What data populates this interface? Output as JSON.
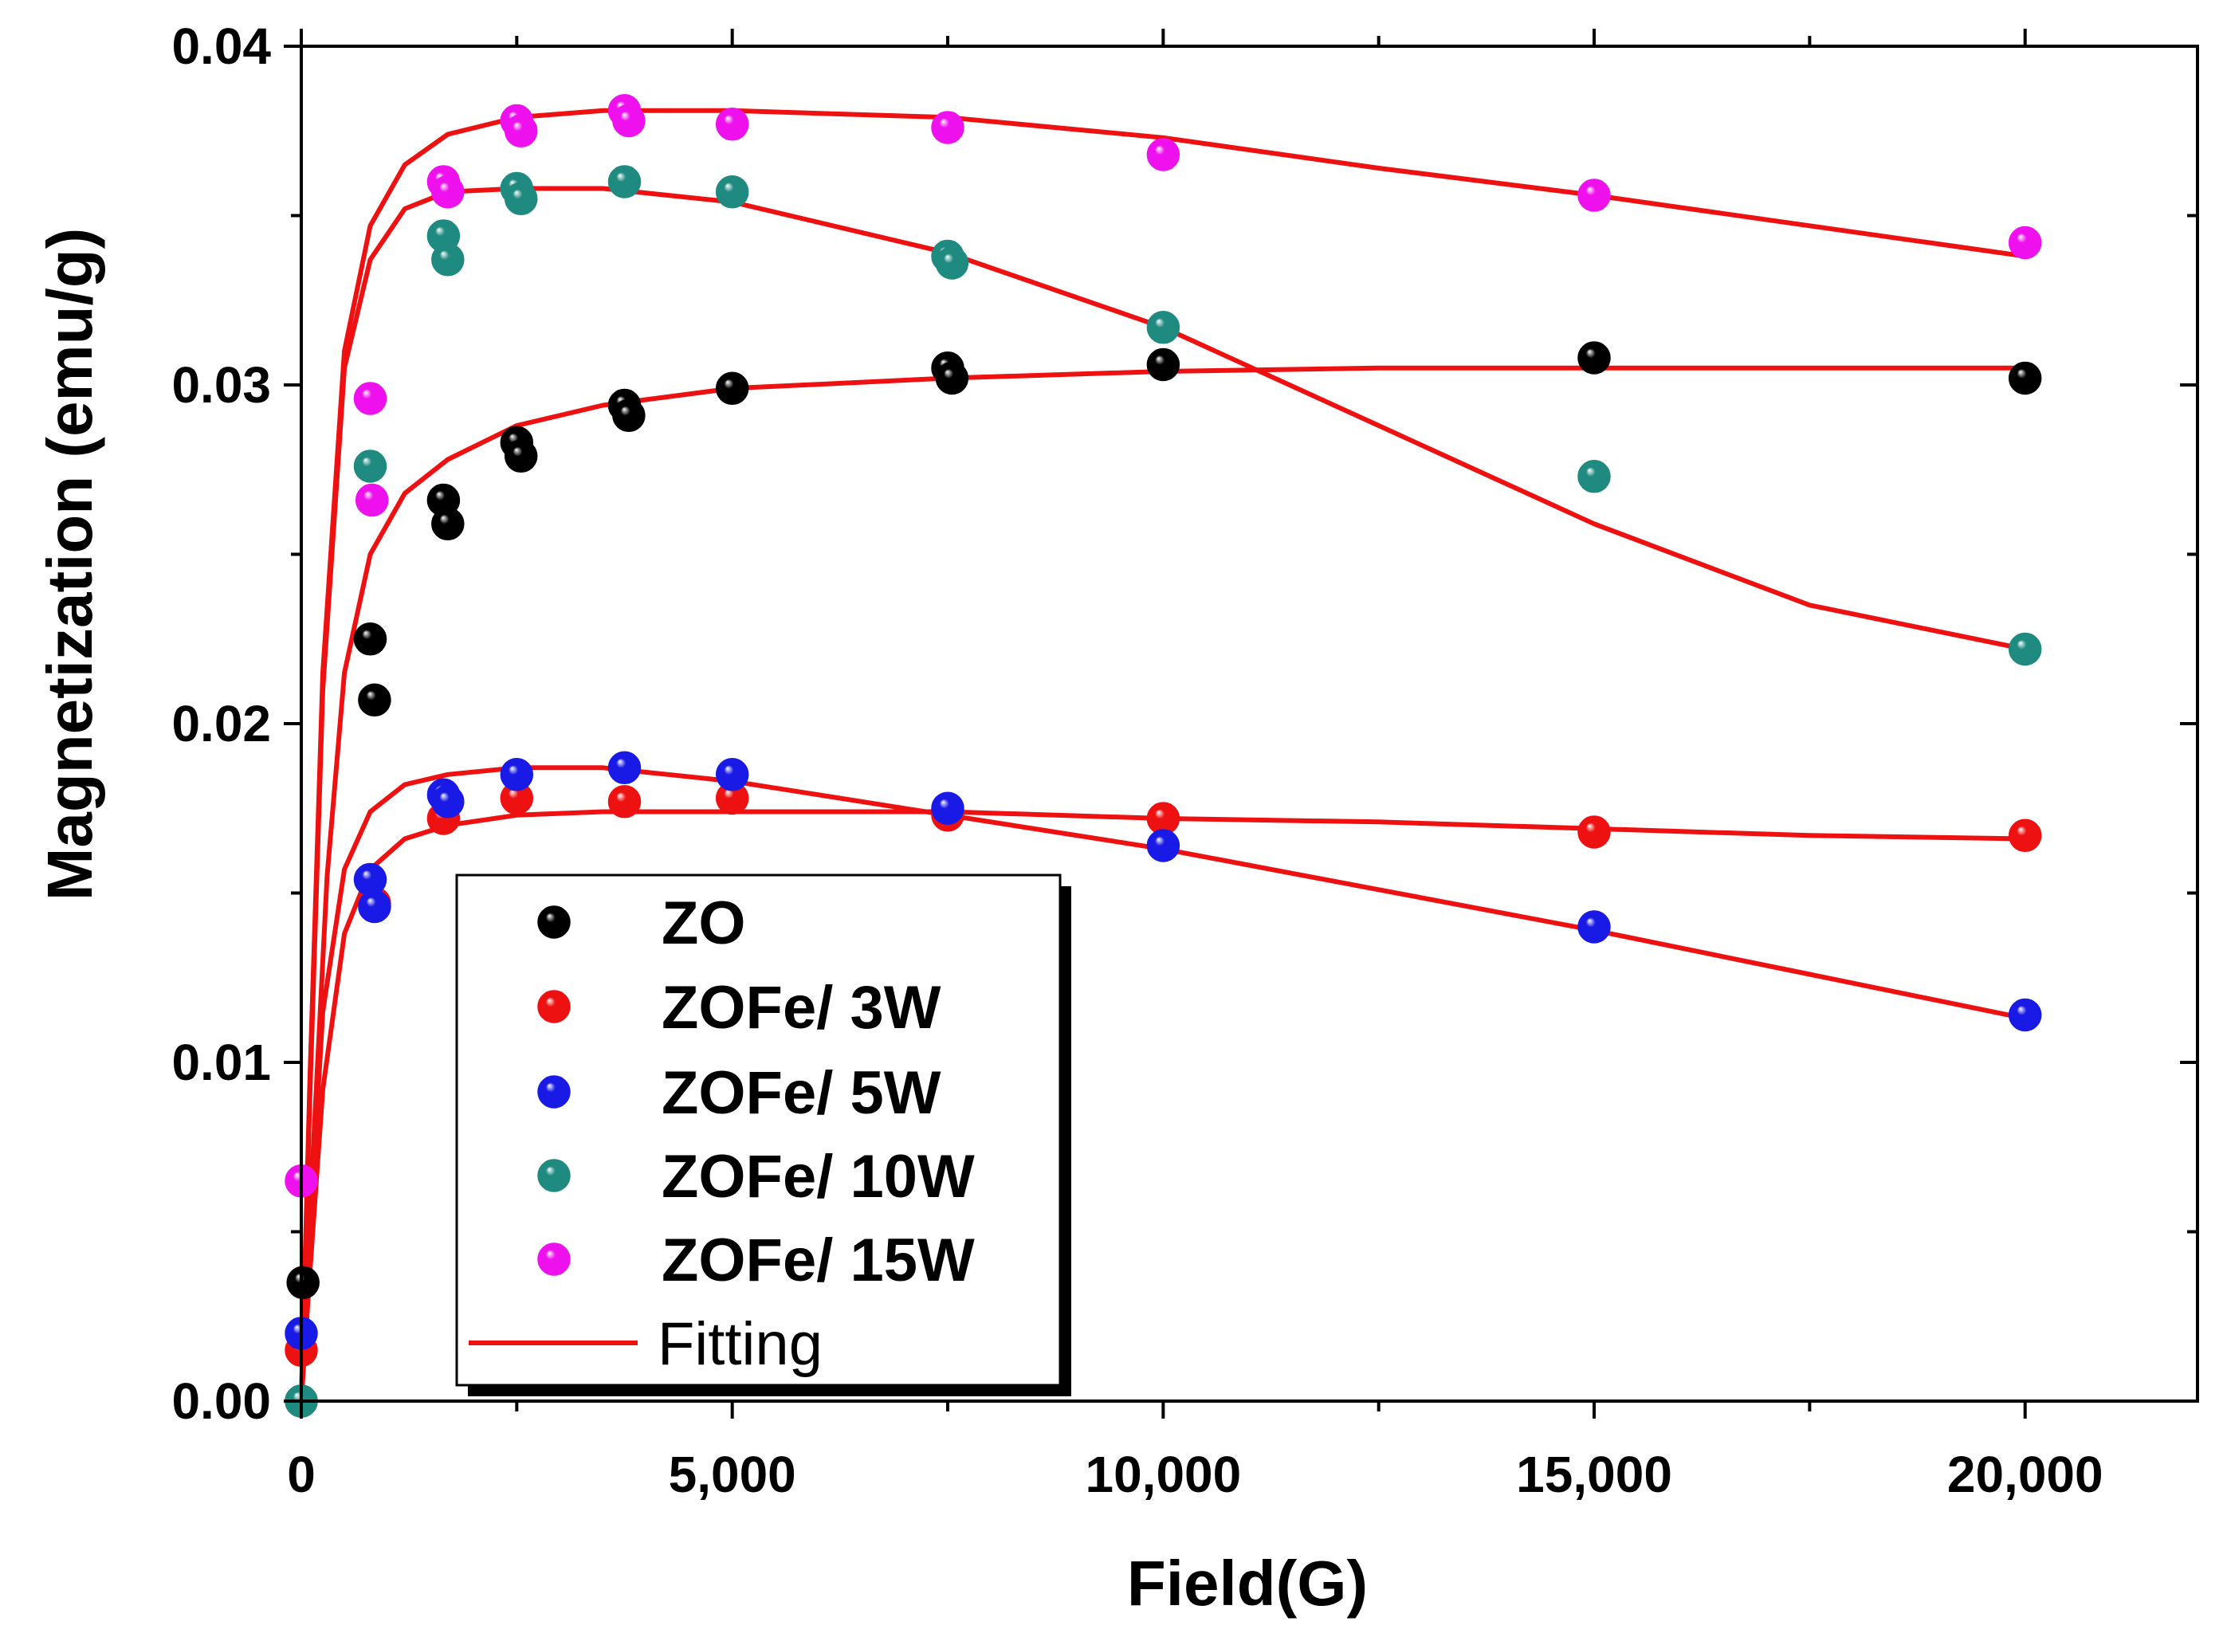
{
  "chart_data": {
    "type": "scatter",
    "title": "",
    "xlabel": "Field(G)",
    "ylabel": "Magnetization (emu/g)",
    "xlim": [
      0,
      22000
    ],
    "ylim": [
      0,
      0.04
    ],
    "xticks": [
      {
        "value": 0,
        "label": "0"
      },
      {
        "value": 5000,
        "label": "5,000"
      },
      {
        "value": 10000,
        "label": "10,000"
      },
      {
        "value": 15000,
        "label": "15,000"
      },
      {
        "value": 20000,
        "label": "20,000"
      }
    ],
    "yticks": [
      {
        "value": 0.0,
        "label": "0.00"
      },
      {
        "value": 0.01,
        "label": "0.01"
      },
      {
        "value": 0.02,
        "label": "0.02"
      },
      {
        "value": 0.03,
        "label": "0.03"
      },
      {
        "value": 0.04,
        "label": "0.04"
      }
    ],
    "grid": false,
    "legend_position": "bottom-left",
    "series": [
      {
        "name": "ZO",
        "color": "#000000",
        "points": [
          [
            0,
            0.0
          ],
          [
            20,
            0.0035
          ],
          [
            800,
            0.0225
          ],
          [
            850,
            0.0207
          ],
          [
            1650,
            0.0266
          ],
          [
            1700,
            0.0259
          ],
          [
            2500,
            0.0283
          ],
          [
            2550,
            0.0279
          ],
          [
            3750,
            0.0294
          ],
          [
            3800,
            0.0291
          ],
          [
            5000,
            0.0299
          ],
          [
            7500,
            0.0305
          ],
          [
            7550,
            0.0302
          ],
          [
            10000,
            0.0306
          ],
          [
            15000,
            0.0308
          ],
          [
            20000,
            0.0302
          ]
        ],
        "fit": [
          [
            0,
            0.0
          ],
          [
            100,
            0.0055
          ],
          [
            300,
            0.0155
          ],
          [
            500,
            0.0215
          ],
          [
            800,
            0.025
          ],
          [
            1200,
            0.0268
          ],
          [
            1700,
            0.0278
          ],
          [
            2500,
            0.0288
          ],
          [
            3500,
            0.0294
          ],
          [
            5000,
            0.0299
          ],
          [
            7500,
            0.0302
          ],
          [
            10000,
            0.0304
          ],
          [
            12500,
            0.0305
          ],
          [
            15000,
            0.0305
          ],
          [
            17500,
            0.0305
          ],
          [
            20000,
            0.0305
          ]
        ]
      },
      {
        "name": "ZOFe/ 3W",
        "color": "#ee1111",
        "points": [
          [
            0,
            0.0015
          ],
          [
            850,
            0.0147
          ],
          [
            1650,
            0.0172
          ],
          [
            2500,
            0.0178
          ],
          [
            3750,
            0.0177
          ],
          [
            5000,
            0.0178
          ],
          [
            7500,
            0.0173
          ],
          [
            10000,
            0.0172
          ],
          [
            15000,
            0.0168
          ],
          [
            20000,
            0.0167
          ]
        ],
        "fit": [
          [
            0,
            0.0
          ],
          [
            100,
            0.0038
          ],
          [
            250,
            0.0092
          ],
          [
            500,
            0.0138
          ],
          [
            800,
            0.0157
          ],
          [
            1200,
            0.0166
          ],
          [
            1700,
            0.017
          ],
          [
            2500,
            0.0173
          ],
          [
            3500,
            0.0174
          ],
          [
            5000,
            0.0174
          ],
          [
            7500,
            0.0174
          ],
          [
            10000,
            0.0172
          ],
          [
            12500,
            0.0171
          ],
          [
            15000,
            0.0169
          ],
          [
            17500,
            0.0167
          ],
          [
            20000,
            0.0166
          ]
        ]
      },
      {
        "name": "ZOFe/ 5W",
        "color": "#1a1ae6",
        "points": [
          [
            0,
            0.002
          ],
          [
            800,
            0.0154
          ],
          [
            850,
            0.0146
          ],
          [
            1650,
            0.0179
          ],
          [
            1700,
            0.0177
          ],
          [
            2500,
            0.0185
          ],
          [
            3750,
            0.0187
          ],
          [
            5000,
            0.0185
          ],
          [
            7500,
            0.0175
          ],
          [
            10000,
            0.0164
          ],
          [
            15000,
            0.014
          ],
          [
            20000,
            0.0114
          ]
        ]
      },
      {
        "name": "ZOFe/ 10W",
        "color": "#1f8a80",
        "points": [
          [
            0,
            0.0
          ],
          [
            800,
            0.0276
          ],
          [
            1650,
            0.0344
          ],
          [
            1700,
            0.0337
          ],
          [
            2500,
            0.0358
          ],
          [
            2550,
            0.0355
          ],
          [
            3750,
            0.036
          ],
          [
            5000,
            0.0357
          ],
          [
            7500,
            0.0338
          ],
          [
            7550,
            0.0336
          ],
          [
            10000,
            0.0317
          ],
          [
            15000,
            0.0273
          ],
          [
            20000,
            0.0222
          ]
        ]
      },
      {
        "name": "ZOFe/ 15W",
        "color": "#ee11ee",
        "points": [
          [
            0,
            0.0065
          ],
          [
            800,
            0.0296
          ],
          [
            820,
            0.0266
          ],
          [
            1650,
            0.036
          ],
          [
            1700,
            0.0357
          ],
          [
            2500,
            0.0378
          ],
          [
            2550,
            0.0375
          ],
          [
            3750,
            0.0381
          ],
          [
            3800,
            0.0378
          ],
          [
            5000,
            0.0377
          ],
          [
            7500,
            0.0376
          ],
          [
            10000,
            0.0368
          ],
          [
            15000,
            0.0356
          ],
          [
            20000,
            0.0342
          ]
        ]
      }
    ],
    "fits": {
      "name": "Fitting",
      "color": "#ee1111",
      "curves": [
        [
          [
            0,
            0.0
          ],
          [
            100,
            0.005
          ],
          [
            250,
            0.0115
          ],
          [
            500,
            0.0157
          ],
          [
            800,
            0.0174
          ],
          [
            1200,
            0.0182
          ],
          [
            1700,
            0.0185
          ],
          [
            2500,
            0.0187
          ],
          [
            3500,
            0.0187
          ],
          [
            5000,
            0.0183
          ],
          [
            7500,
            0.0173
          ],
          [
            10000,
            0.0163
          ],
          [
            12500,
            0.0151
          ],
          [
            15000,
            0.0139
          ],
          [
            17500,
            0.0126
          ],
          [
            20000,
            0.0113
          ]
        ],
        [
          [
            0,
            0.0
          ],
          [
            100,
            0.009
          ],
          [
            250,
            0.021
          ],
          [
            500,
            0.0305
          ],
          [
            800,
            0.0337
          ],
          [
            1200,
            0.0352
          ],
          [
            1700,
            0.0357
          ],
          [
            2500,
            0.0358
          ],
          [
            3500,
            0.0358
          ],
          [
            5000,
            0.0354
          ],
          [
            7500,
            0.0339
          ],
          [
            10000,
            0.0317
          ],
          [
            12500,
            0.0288
          ],
          [
            15000,
            0.0259
          ],
          [
            17500,
            0.0235
          ],
          [
            20000,
            0.0222
          ]
        ],
        [
          [
            0,
            0.0
          ],
          [
            100,
            0.0095
          ],
          [
            250,
            0.0215
          ],
          [
            500,
            0.031
          ],
          [
            800,
            0.0347
          ],
          [
            1200,
            0.0365
          ],
          [
            1700,
            0.0374
          ],
          [
            2500,
            0.0379
          ],
          [
            3500,
            0.0381
          ],
          [
            5000,
            0.0381
          ],
          [
            7500,
            0.0379
          ],
          [
            10000,
            0.0373
          ],
          [
            12500,
            0.0364
          ],
          [
            15000,
            0.0356
          ],
          [
            17500,
            0.0347
          ],
          [
            20000,
            0.0338
          ]
        ]
      ]
    }
  },
  "legend": {
    "items": [
      {
        "label": "ZO",
        "color": "#000000"
      },
      {
        "label": "ZOFe/ 3W",
        "color": "#ee1111"
      },
      {
        "label": "ZOFe/ 5W",
        "color": "#1a1ae6"
      },
      {
        "label": "ZOFe/ 10W",
        "color": "#1f8a80"
      },
      {
        "label": "ZOFe/ 15W",
        "color": "#ee11ee"
      }
    ],
    "fit_label": "Fitting",
    "fit_color": "#ee1111"
  }
}
